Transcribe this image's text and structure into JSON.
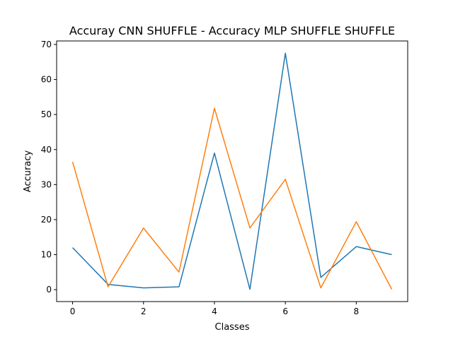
{
  "chart_data": {
    "type": "line",
    "title": "Accuray CNN SHUFFLE - Accuracy MLP SHUFFLE SHUFFLE",
    "xlabel": "Classes",
    "ylabel": "Accuracy",
    "x": [
      0,
      1,
      2,
      3,
      4,
      5,
      6,
      7,
      8,
      9
    ],
    "xticks": [
      0,
      2,
      4,
      6,
      8
    ],
    "yticks": [
      0,
      10,
      20,
      30,
      40,
      50,
      60,
      70
    ],
    "xlim": [
      -0.45,
      9.45
    ],
    "ylim": [
      -3.4,
      71.0
    ],
    "grid": false,
    "series": [
      {
        "color": "#1f77b4",
        "values": [
          12.0,
          1.5,
          0.5,
          0.8,
          39.0,
          0.1,
          67.5,
          3.5,
          12.3,
          10.0
        ]
      },
      {
        "color": "#ff7f0e",
        "values": [
          36.5,
          0.8,
          17.6,
          5.0,
          51.8,
          17.6,
          31.5,
          0.5,
          19.4,
          0.1
        ]
      }
    ]
  }
}
